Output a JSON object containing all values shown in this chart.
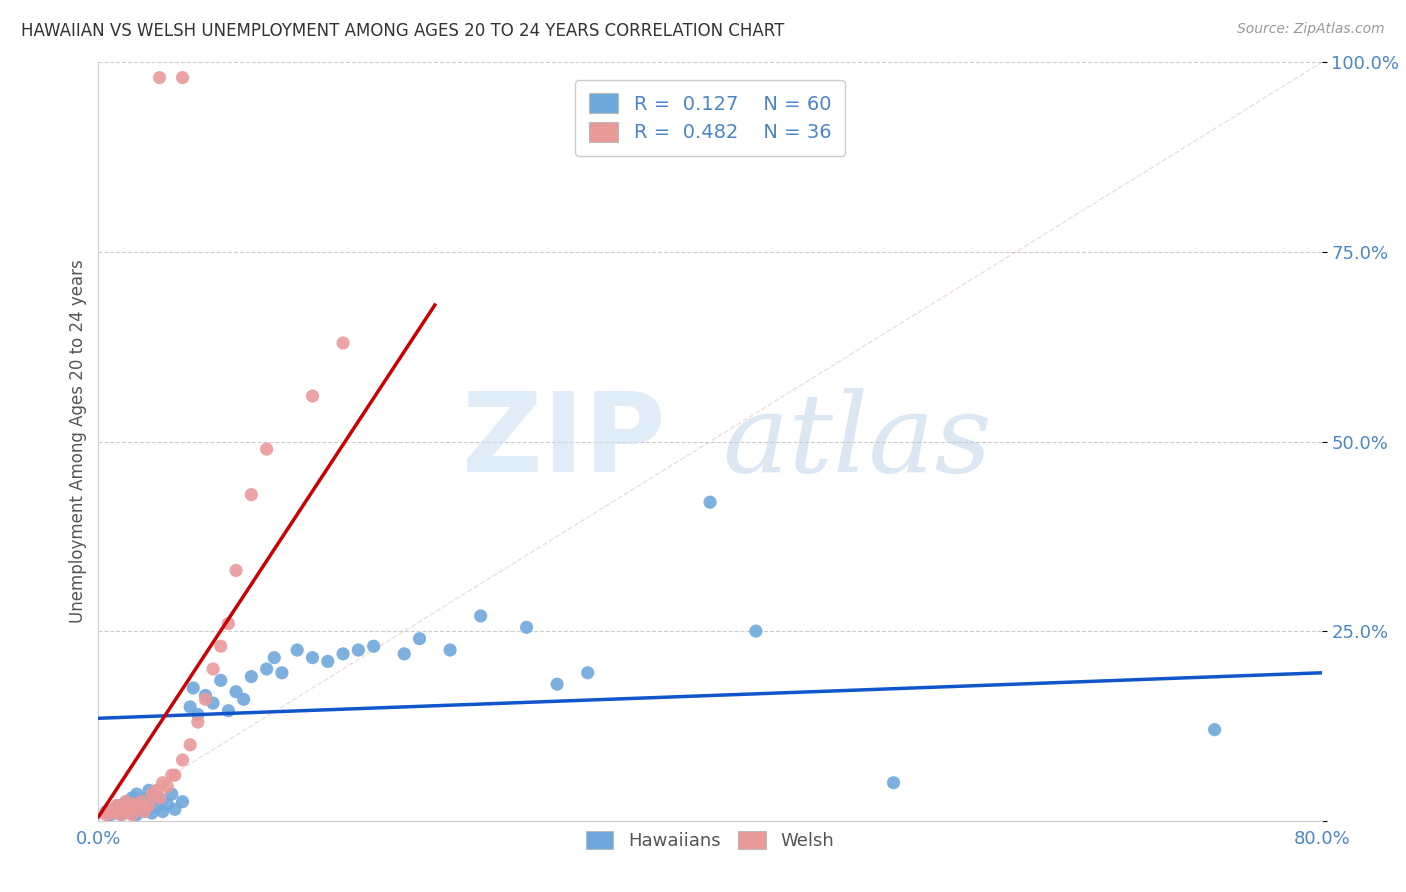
{
  "title": "HAWAIIAN VS WELSH UNEMPLOYMENT AMONG AGES 20 TO 24 YEARS CORRELATION CHART",
  "source": "Source: ZipAtlas.com",
  "ylabel": "Unemployment Among Ages 20 to 24 years",
  "xlim": [
    0.0,
    0.8
  ],
  "ylim": [
    0.0,
    1.0
  ],
  "hawaiian_color": "#6fa8dc",
  "welsh_color": "#ea9999",
  "trendline_hawaiian_color": "#1155cc",
  "trendline_welsh_color": "#cc0000",
  "background_color": "#ffffff",
  "grid_color": "#cccccc",
  "legend_r_hawaiian": "0.127",
  "legend_n_hawaiian": "60",
  "legend_r_welsh": "0.482",
  "legend_n_welsh": "36",
  "hawaiian_x": [
    0.005,
    0.008,
    0.01,
    0.012,
    0.013,
    0.015,
    0.015,
    0.018,
    0.018,
    0.02,
    0.02,
    0.022,
    0.022,
    0.025,
    0.025,
    0.025,
    0.028,
    0.03,
    0.03,
    0.032,
    0.033,
    0.035,
    0.035,
    0.038,
    0.04,
    0.042,
    0.045,
    0.048,
    0.05,
    0.055,
    0.06,
    0.062,
    0.065,
    0.07,
    0.075,
    0.08,
    0.085,
    0.09,
    0.095,
    0.1,
    0.11,
    0.115,
    0.12,
    0.13,
    0.14,
    0.15,
    0.16,
    0.17,
    0.18,
    0.2,
    0.21,
    0.23,
    0.25,
    0.28,
    0.3,
    0.32,
    0.4,
    0.43,
    0.52,
    0.73
  ],
  "hawaiian_y": [
    0.012,
    0.008,
    0.015,
    0.01,
    0.02,
    0.008,
    0.018,
    0.012,
    0.025,
    0.01,
    0.022,
    0.015,
    0.03,
    0.008,
    0.018,
    0.035,
    0.02,
    0.012,
    0.028,
    0.015,
    0.04,
    0.01,
    0.025,
    0.018,
    0.03,
    0.012,
    0.022,
    0.035,
    0.015,
    0.025,
    0.15,
    0.175,
    0.14,
    0.165,
    0.155,
    0.185,
    0.145,
    0.17,
    0.16,
    0.19,
    0.2,
    0.215,
    0.195,
    0.225,
    0.215,
    0.21,
    0.22,
    0.225,
    0.23,
    0.22,
    0.24,
    0.225,
    0.27,
    0.255,
    0.18,
    0.195,
    0.42,
    0.25,
    0.05,
    0.12
  ],
  "welsh_x": [
    0.005,
    0.008,
    0.01,
    0.012,
    0.015,
    0.015,
    0.018,
    0.018,
    0.02,
    0.022,
    0.022,
    0.025,
    0.028,
    0.03,
    0.033,
    0.035,
    0.038,
    0.04,
    0.042,
    0.045,
    0.048,
    0.05,
    0.055,
    0.06,
    0.065,
    0.07,
    0.075,
    0.08,
    0.085,
    0.09,
    0.1,
    0.11,
    0.14,
    0.16,
    0.04,
    0.055
  ],
  "welsh_y": [
    0.008,
    0.012,
    0.01,
    0.02,
    0.008,
    0.018,
    0.012,
    0.025,
    0.015,
    0.008,
    0.022,
    0.018,
    0.025,
    0.012,
    0.02,
    0.035,
    0.04,
    0.03,
    0.05,
    0.045,
    0.06,
    0.06,
    0.08,
    0.1,
    0.13,
    0.16,
    0.2,
    0.23,
    0.26,
    0.33,
    0.43,
    0.49,
    0.56,
    0.63,
    0.98,
    0.98
  ],
  "welsh_trendline_x": [
    0.0,
    0.22
  ],
  "welsh_trendline_y": [
    0.005,
    0.68
  ],
  "hawaiian_trendline_x": [
    0.0,
    0.8
  ],
  "hawaiian_trendline_y": [
    0.135,
    0.195
  ]
}
